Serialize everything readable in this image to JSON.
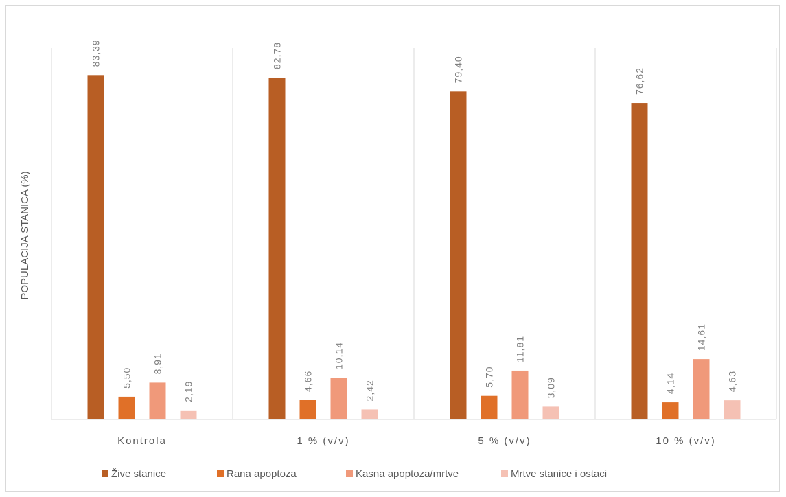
{
  "chart_data": {
    "type": "bar",
    "title": "",
    "xlabel": "",
    "ylabel": "POPULACIJA STANICA (%)",
    "ylim": [
      0,
      100
    ],
    "grid": false,
    "legend_position": "bottom",
    "categories": [
      "Kontrola",
      "1 % (v/v)",
      "5 % (v/v)",
      "10 % (v/v)"
    ],
    "series": [
      {
        "name": "Žive stanice",
        "color": "#b85e24",
        "values": [
          83.39,
          82.78,
          79.4,
          76.62
        ],
        "labels": [
          "83,39",
          "82,78",
          "79,40",
          "76,62"
        ]
      },
      {
        "name": "Rana apoptoza",
        "color": "#e07028",
        "values": [
          5.5,
          4.66,
          5.7,
          4.14
        ],
        "labels": [
          "5,50",
          "4,66",
          "5,70",
          "4,14"
        ]
      },
      {
        "name": "Kasna apoptoza/mrtve",
        "color": "#f0997a",
        "values": [
          8.91,
          10.14,
          11.81,
          14.61
        ],
        "labels": [
          "8,91",
          "10,14",
          "11,81",
          "14,61"
        ]
      },
      {
        "name": "Mrtve stanice i ostaci",
        "color": "#f5c1b4",
        "values": [
          2.19,
          2.42,
          3.09,
          4.63
        ],
        "labels": [
          "2,19",
          "2,42",
          "3,09",
          "4,63"
        ]
      }
    ]
  }
}
